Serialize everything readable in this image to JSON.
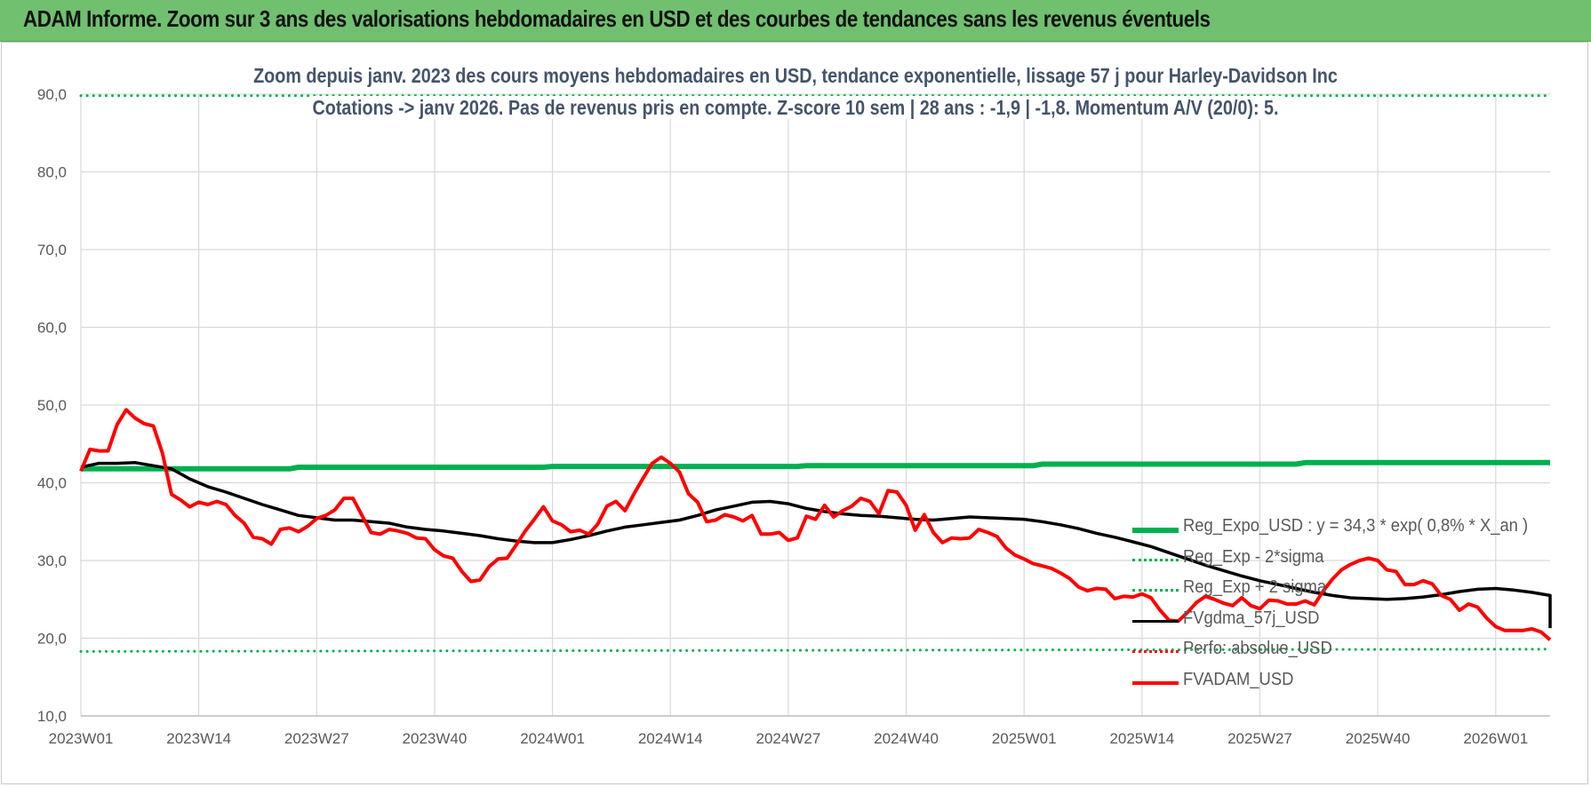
{
  "banner": {
    "title": "ADAM Informe. Zoom sur 3 ans des valorisations hebdomadaires en USD et des courbes de tendances sans les revenus éventuels"
  },
  "chart_data": {
    "type": "line",
    "title": "Zoom depuis janv. 2023 des cours moyens hebdomadaires en USD, tendance exponentielle, lissage 57 j pour Harley-Davidson Inc",
    "subtitle": "Cotations -> janv 2026. Pas de revenus pris en compte. Z-score 10 sem | 28 ans : -1,9 | -1,8. Momentum A/V (20/0): 5.",
    "xlabel": "",
    "ylabel": "",
    "ylim": [
      10,
      90
    ],
    "yticks": [
      "10,0",
      "20,0",
      "30,0",
      "40,0",
      "50,0",
      "60,0",
      "70,0",
      "80,0",
      "90,0"
    ],
    "xticks": [
      "2023W01",
      "2023W14",
      "2023W27",
      "2023W40",
      "2024W01",
      "2024W14",
      "2024W27",
      "2024W40",
      "2025W01",
      "2025W14",
      "2025W27",
      "2025W40",
      "2026W01"
    ],
    "x_index_range": [
      0,
      162
    ],
    "grid": true,
    "legend_position": "right",
    "series": [
      {
        "name": "Reg_Expo_USD : y = 34,3 * exp( 0,8% *  X_an )",
        "color": "#00b050",
        "style": "solid",
        "width": 6,
        "points": [
          [
            0,
            41.8
          ],
          [
            23,
            41.8
          ],
          [
            24,
            42.0
          ],
          [
            51,
            42.0
          ],
          [
            52,
            42.1
          ],
          [
            79,
            42.1
          ],
          [
            80,
            42.2
          ],
          [
            105,
            42.2
          ],
          [
            106,
            42.4
          ],
          [
            134,
            42.4
          ],
          [
            135,
            42.6
          ],
          [
            162,
            42.6
          ]
        ]
      },
      {
        "name": "Reg_Exp - 2*sigma",
        "color": "#00b050",
        "style": "dotted",
        "width": 3,
        "points": [
          [
            0,
            18.3
          ],
          [
            162,
            18.6
          ]
        ]
      },
      {
        "name": "Reg_Exp + 2 sigma",
        "color": "#00b050",
        "style": "dotted",
        "width": 3,
        "points": [
          [
            0,
            89.8
          ],
          [
            162,
            89.8
          ]
        ]
      },
      {
        "name": "FVgdma_57j_USD",
        "color": "#000000",
        "style": "solid",
        "width": 3.5,
        "points": [
          [
            0,
            42.0
          ],
          [
            2,
            42.5
          ],
          [
            4,
            42.5
          ],
          [
            6,
            42.6
          ],
          [
            8,
            42.2
          ],
          [
            10,
            41.8
          ],
          [
            12,
            40.5
          ],
          [
            14,
            39.5
          ],
          [
            16,
            38.8
          ],
          [
            18,
            38.0
          ],
          [
            20,
            37.2
          ],
          [
            22,
            36.5
          ],
          [
            24,
            35.8
          ],
          [
            26,
            35.5
          ],
          [
            28,
            35.2
          ],
          [
            30,
            35.2
          ],
          [
            32,
            35.0
          ],
          [
            34,
            34.8
          ],
          [
            36,
            34.3
          ],
          [
            38,
            34.0
          ],
          [
            40,
            33.8
          ],
          [
            42,
            33.5
          ],
          [
            44,
            33.2
          ],
          [
            46,
            32.8
          ],
          [
            48,
            32.5
          ],
          [
            50,
            32.3
          ],
          [
            52,
            32.3
          ],
          [
            54,
            32.7
          ],
          [
            56,
            33.2
          ],
          [
            58,
            33.8
          ],
          [
            60,
            34.3
          ],
          [
            62,
            34.6
          ],
          [
            64,
            34.9
          ],
          [
            66,
            35.2
          ],
          [
            68,
            35.8
          ],
          [
            70,
            36.5
          ],
          [
            72,
            37.0
          ],
          [
            74,
            37.5
          ],
          [
            76,
            37.6
          ],
          [
            78,
            37.3
          ],
          [
            80,
            36.7
          ],
          [
            82,
            36.3
          ],
          [
            84,
            36.0
          ],
          [
            86,
            35.8
          ],
          [
            88,
            35.7
          ],
          [
            90,
            35.5
          ],
          [
            92,
            35.3
          ],
          [
            94,
            35.2
          ],
          [
            96,
            35.4
          ],
          [
            98,
            35.6
          ],
          [
            100,
            35.5
          ],
          [
            102,
            35.4
          ],
          [
            104,
            35.3
          ],
          [
            106,
            35.0
          ],
          [
            108,
            34.6
          ],
          [
            110,
            34.1
          ],
          [
            112,
            33.5
          ],
          [
            114,
            33.0
          ],
          [
            116,
            32.4
          ],
          [
            118,
            31.8
          ],
          [
            120,
            31.0
          ],
          [
            122,
            30.2
          ],
          [
            124,
            29.4
          ],
          [
            126,
            28.7
          ],
          [
            128,
            28.0
          ],
          [
            130,
            27.4
          ],
          [
            132,
            26.9
          ],
          [
            134,
            26.4
          ],
          [
            136,
            25.9
          ],
          [
            138,
            25.5
          ],
          [
            140,
            25.2
          ],
          [
            142,
            25.1
          ],
          [
            144,
            25.0
          ],
          [
            146,
            25.1
          ],
          [
            148,
            25.3
          ],
          [
            150,
            25.6
          ],
          [
            152,
            26.0
          ],
          [
            154,
            26.3
          ],
          [
            156,
            26.4
          ],
          [
            158,
            26.2
          ],
          [
            160,
            25.9
          ],
          [
            162,
            25.5
          ],
          [
            164,
            25.2
          ],
          [
            166,
            24.7
          ],
          [
            168,
            24.2
          ],
          [
            170,
            23.6
          ],
          [
            172,
            23.0
          ],
          [
            174,
            22.5
          ],
          [
            176,
            22.1
          ],
          [
            178,
            21.8
          ],
          [
            180,
            21.3
          ]
        ]
      },
      {
        "name": "Perfo: absolue_USD",
        "color": "#ff0000",
        "style": "dotted",
        "width": 3,
        "points": []
      },
      {
        "name": "FVADAM_USD",
        "color": "#ff0000",
        "style": "solid",
        "width": 4,
        "points": [
          [
            0,
            41.5
          ],
          [
            1,
            44.3
          ],
          [
            2,
            44.1
          ],
          [
            3,
            44.1
          ],
          [
            4,
            47.5
          ],
          [
            5,
            49.4
          ],
          [
            6,
            48.3
          ],
          [
            7,
            47.6
          ],
          [
            8,
            47.3
          ],
          [
            9,
            43.8
          ],
          [
            10,
            38.5
          ],
          [
            11,
            37.8
          ],
          [
            12,
            36.9
          ],
          [
            13,
            37.5
          ],
          [
            14,
            37.2
          ],
          [
            15,
            37.6
          ],
          [
            16,
            37.2
          ],
          [
            17,
            35.8
          ],
          [
            18,
            34.8
          ],
          [
            19,
            33.0
          ],
          [
            20,
            32.8
          ],
          [
            21,
            32.1
          ],
          [
            22,
            34.0
          ],
          [
            23,
            34.2
          ],
          [
            24,
            33.7
          ],
          [
            25,
            34.4
          ],
          [
            26,
            35.4
          ],
          [
            27,
            35.8
          ],
          [
            28,
            36.5
          ],
          [
            29,
            38.0
          ],
          [
            30,
            38.0
          ],
          [
            31,
            35.8
          ],
          [
            32,
            33.6
          ],
          [
            33,
            33.4
          ],
          [
            34,
            34.0
          ],
          [
            35,
            33.8
          ],
          [
            36,
            33.5
          ],
          [
            37,
            32.9
          ],
          [
            38,
            32.8
          ],
          [
            39,
            31.4
          ],
          [
            40,
            30.6
          ],
          [
            41,
            30.3
          ],
          [
            42,
            28.6
          ],
          [
            43,
            27.3
          ],
          [
            44,
            27.5
          ],
          [
            45,
            29.2
          ],
          [
            46,
            30.2
          ],
          [
            47,
            30.3
          ],
          [
            48,
            32.0
          ],
          [
            49,
            33.8
          ],
          [
            50,
            35.3
          ],
          [
            51,
            36.9
          ],
          [
            52,
            35.1
          ],
          [
            53,
            34.6
          ],
          [
            54,
            33.7
          ],
          [
            55,
            33.9
          ],
          [
            56,
            33.4
          ],
          [
            57,
            34.7
          ],
          [
            58,
            37.0
          ],
          [
            59,
            37.6
          ],
          [
            60,
            36.4
          ],
          [
            61,
            38.6
          ],
          [
            62,
            40.6
          ],
          [
            63,
            42.5
          ],
          [
            64,
            43.3
          ],
          [
            65,
            42.5
          ],
          [
            66,
            41.4
          ],
          [
            67,
            38.6
          ],
          [
            68,
            37.5
          ],
          [
            69,
            35.0
          ],
          [
            70,
            35.2
          ],
          [
            71,
            35.9
          ],
          [
            72,
            35.6
          ],
          [
            73,
            35.1
          ],
          [
            74,
            35.8
          ],
          [
            75,
            33.4
          ],
          [
            76,
            33.4
          ],
          [
            77,
            33.6
          ],
          [
            78,
            32.6
          ],
          [
            79,
            32.9
          ],
          [
            80,
            35.7
          ],
          [
            81,
            35.3
          ],
          [
            82,
            37.1
          ],
          [
            83,
            35.6
          ],
          [
            84,
            36.4
          ],
          [
            85,
            37.0
          ],
          [
            86,
            38.0
          ],
          [
            87,
            37.6
          ],
          [
            88,
            36.0
          ],
          [
            89,
            39.0
          ],
          [
            90,
            38.8
          ],
          [
            91,
            37.1
          ],
          [
            92,
            33.9
          ],
          [
            93,
            35.9
          ],
          [
            94,
            33.6
          ],
          [
            95,
            32.3
          ],
          [
            96,
            32.9
          ],
          [
            97,
            32.8
          ],
          [
            98,
            32.9
          ],
          [
            99,
            34.0
          ],
          [
            100,
            33.6
          ],
          [
            101,
            33.1
          ],
          [
            102,
            31.6
          ],
          [
            103,
            30.7
          ],
          [
            104,
            30.2
          ],
          [
            105,
            29.6
          ],
          [
            106,
            29.3
          ],
          [
            107,
            29.0
          ],
          [
            108,
            28.4
          ],
          [
            109,
            27.7
          ],
          [
            110,
            26.6
          ],
          [
            111,
            26.1
          ],
          [
            112,
            26.4
          ],
          [
            113,
            26.3
          ],
          [
            114,
            25.1
          ],
          [
            115,
            25.4
          ],
          [
            116,
            25.3
          ],
          [
            117,
            25.7
          ],
          [
            118,
            25.2
          ],
          [
            119,
            23.6
          ],
          [
            120,
            22.3
          ],
          [
            121,
            22.2
          ],
          [
            122,
            23.3
          ],
          [
            123,
            24.6
          ],
          [
            124,
            25.4
          ],
          [
            125,
            25.0
          ],
          [
            126,
            24.5
          ],
          [
            127,
            24.2
          ],
          [
            128,
            25.2
          ],
          [
            129,
            24.2
          ],
          [
            130,
            23.8
          ],
          [
            131,
            24.9
          ],
          [
            132,
            24.8
          ],
          [
            133,
            24.4
          ],
          [
            134,
            24.4
          ],
          [
            135,
            24.8
          ],
          [
            136,
            24.3
          ],
          [
            137,
            26.1
          ],
          [
            138,
            27.6
          ],
          [
            139,
            28.8
          ],
          [
            140,
            29.5
          ],
          [
            141,
            30.0
          ],
          [
            142,
            30.3
          ],
          [
            143,
            30.0
          ],
          [
            144,
            28.8
          ],
          [
            145,
            28.6
          ],
          [
            146,
            26.9
          ],
          [
            147,
            26.9
          ],
          [
            148,
            27.4
          ],
          [
            149,
            27.0
          ],
          [
            150,
            25.5
          ],
          [
            151,
            25.0
          ],
          [
            152,
            23.6
          ],
          [
            153,
            24.4
          ],
          [
            154,
            24.0
          ],
          [
            155,
            22.6
          ],
          [
            156,
            21.5
          ],
          [
            157,
            21.0
          ],
          [
            158,
            21.0
          ],
          [
            159,
            21.0
          ],
          [
            160,
            21.2
          ],
          [
            161,
            20.8
          ],
          [
            162,
            19.8
          ]
        ]
      }
    ]
  }
}
